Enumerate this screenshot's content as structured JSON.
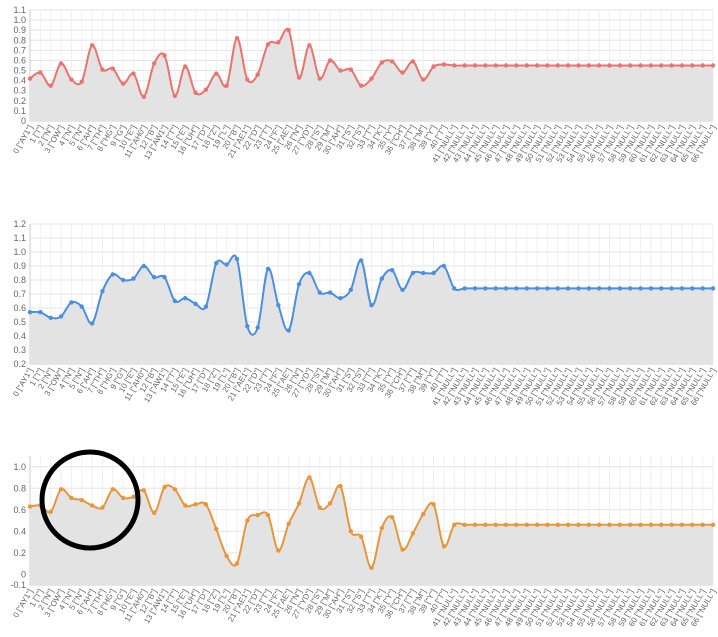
{
  "chart_data": [
    {
      "type": "area",
      "color": "#e8736f",
      "area_color": "#e3e3e3",
      "grid": true,
      "ylim": [
        0,
        1.1
      ],
      "yticks": [
        "0",
        "0.1",
        "0.2",
        "0.3",
        "0.4",
        "0.5",
        "0.6",
        "0.7",
        "0.8",
        "0.9",
        "1.0",
        "1.1"
      ],
      "ytick_values": [
        0,
        0.1,
        0.2,
        0.3,
        0.4,
        0.5,
        0.6,
        0.7,
        0.8,
        0.9,
        1.0,
        1.1
      ],
      "x": [
        "0 [\"AY1\"]",
        "1 [\"I\"]",
        "2 [\"N\"]",
        "3 [\"OW\"]",
        "4 [\"N\"]",
        "5 [\"N\"]",
        "6 [\"AH\"]",
        "7 [\"TH\"]",
        "8 [\"HG\"]",
        "9 [\"G\"]",
        "10 [\"E\"]",
        "11 [\"AH0\"]",
        "12 [\"B\"]",
        "13 [\"AW1\"]",
        "14 [\"T\"]",
        "15 [\"E\"]",
        "16 [\"UH\"]",
        "17 [\"D\"]",
        "18 [\"Z\"]",
        "19 [\"L\"]",
        "20 [\"B\"]",
        "21 [\"AE1\"]",
        "22 [\"D\"]",
        "23 [\"T\"]",
        "24 [\"F\"]",
        "25 [\"AE\"]",
        "26 [\"N\"]",
        "27 [\"YD\"]",
        "28 [\"S\"]",
        "29 [\"M\"]",
        "30 [\"AH\"]",
        "31 [\"S\"]",
        "32 [\"S\"]",
        "33 [\"T\"]",
        "34 [\"K\"]",
        "35 [\"Y\"]",
        "36 [\"CH\"]",
        "37 [\"T\"]",
        "38 [\"M\"]",
        "39 [\"Y\"]",
        "40 [\"T\"]",
        "41 [\"NULL\"]",
        "42 [\"NULL\"]",
        "43 [\"NULL\"]",
        "44 [\"NULL\"]",
        "45 [\"NULL\"]",
        "46 [\"NULL\"]",
        "47 [\"NULL\"]",
        "48 [\"NULL\"]",
        "49 [\"NULL\"]",
        "50 [\"NULL\"]",
        "51 [\"NULL\"]",
        "52 [\"NULL\"]",
        "53 [\"NULL\"]",
        "54 [\"NULL\"]",
        "55 [\"NULL\"]",
        "56 [\"NULL\"]",
        "57 [\"NULL\"]",
        "58 [\"NULL\"]",
        "59 [\"NULL\"]",
        "60 [\"NULL\"]",
        "61 [\"NULL\"]",
        "62 [\"NULL\"]",
        "63 [\"NULL\"]",
        "64 [\"NULL\"]",
        "65 [\"NULL\"]",
        "66 [\"NULL\"]"
      ],
      "values": [
        0.42,
        0.48,
        0.35,
        0.57,
        0.41,
        0.39,
        0.75,
        0.51,
        0.52,
        0.37,
        0.47,
        0.24,
        0.57,
        0.65,
        0.25,
        0.54,
        0.28,
        0.31,
        0.47,
        0.35,
        0.82,
        0.41,
        0.46,
        0.76,
        0.78,
        0.9,
        0.43,
        0.75,
        0.42,
        0.6,
        0.5,
        0.51,
        0.35,
        0.42,
        0.58,
        0.59,
        0.48,
        0.59,
        0.41,
        0.54,
        0.56,
        0.55,
        0.55,
        0.55,
        0.55,
        0.55,
        0.55,
        0.55,
        0.55,
        0.55,
        0.55,
        0.55,
        0.55,
        0.55,
        0.55,
        0.55,
        0.55,
        0.55,
        0.55,
        0.55,
        0.55,
        0.55,
        0.55,
        0.55,
        0.55,
        0.55,
        0.55
      ]
    },
    {
      "type": "area",
      "color": "#4a8fe0",
      "area_color": "#e3e3e3",
      "grid": true,
      "ylim": [
        0.2,
        1.2
      ],
      "yticks": [
        "0.2",
        "0.3",
        "0.4",
        "0.5",
        "0.6",
        "0.7",
        "0.8",
        "0.9",
        "1.0",
        "1.1",
        "1.2"
      ],
      "ytick_values": [
        0.2,
        0.3,
        0.4,
        0.5,
        0.6,
        0.7,
        0.8,
        0.9,
        1.0,
        1.1,
        1.2
      ],
      "x": [
        "0 [\"AY1\"]",
        "1 [\"I\"]",
        "2 [\"N\"]",
        "3 [\"OW\"]",
        "4 [\"N\"]",
        "5 [\"N\"]",
        "6 [\"AH\"]",
        "7 [\"TH\"]",
        "8 [\"HG\"]",
        "9 [\"G\"]",
        "10 [\"E\"]",
        "11 [\"AH0\"]",
        "12 [\"B\"]",
        "13 [\"AW1\"]",
        "14 [\"T\"]",
        "15 [\"E\"]",
        "16 [\"UH\"]",
        "17 [\"D\"]",
        "18 [\"Z\"]",
        "19 [\"L\"]",
        "20 [\"B\"]",
        "21 [\"AE1\"]",
        "22 [\"D\"]",
        "23 [\"T\"]",
        "24 [\"F\"]",
        "25 [\"AE\"]",
        "26 [\"N\"]",
        "27 [\"YD\"]",
        "28 [\"S\"]",
        "29 [\"M\"]",
        "30 [\"AH\"]",
        "31 [\"S\"]",
        "32 [\"S\"]",
        "33 [\"T\"]",
        "34 [\"K\"]",
        "35 [\"Y\"]",
        "36 [\"CH\"]",
        "37 [\"T\"]",
        "38 [\"M\"]",
        "39 [\"Y\"]",
        "40 [\"T\"]",
        "41 [\"NULL\"]",
        "42 [\"NULL\"]",
        "43 [\"NULL\"]",
        "44 [\"NULL\"]",
        "45 [\"NULL\"]",
        "46 [\"NULL\"]",
        "47 [\"NULL\"]",
        "48 [\"NULL\"]",
        "49 [\"NULL\"]",
        "50 [\"NULL\"]",
        "51 [\"NULL\"]",
        "52 [\"NULL\"]",
        "53 [\"NULL\"]",
        "54 [\"NULL\"]",
        "55 [\"NULL\"]",
        "56 [\"NULL\"]",
        "57 [\"NULL\"]",
        "58 [\"NULL\"]",
        "59 [\"NULL\"]",
        "60 [\"NULL\"]",
        "61 [\"NULL\"]",
        "62 [\"NULL\"]",
        "63 [\"NULL\"]",
        "64 [\"NULL\"]",
        "65 [\"NULL\"]",
        "66 [\"NULL\"]"
      ],
      "values": [
        0.57,
        0.57,
        0.53,
        0.54,
        0.64,
        0.61,
        0.49,
        0.72,
        0.84,
        0.8,
        0.81,
        0.9,
        0.82,
        0.82,
        0.65,
        0.67,
        0.63,
        0.61,
        0.92,
        0.91,
        0.95,
        0.47,
        0.46,
        0.88,
        0.62,
        0.44,
        0.77,
        0.85,
        0.71,
        0.71,
        0.67,
        0.73,
        0.94,
        0.62,
        0.81,
        0.87,
        0.73,
        0.85,
        0.85,
        0.85,
        0.9,
        0.74,
        0.74,
        0.74,
        0.74,
        0.74,
        0.74,
        0.74,
        0.74,
        0.74,
        0.74,
        0.74,
        0.74,
        0.74,
        0.74,
        0.74,
        0.74,
        0.74,
        0.74,
        0.74,
        0.74,
        0.74,
        0.74,
        0.74,
        0.74,
        0.74,
        0.74
      ]
    },
    {
      "type": "area",
      "color": "#e8963c",
      "area_color": "#e3e3e3",
      "grid": true,
      "ylim": [
        -0.1,
        1.1
      ],
      "yticks": [
        "-0.1",
        "0",
        "0.2",
        "0.4",
        "0.6",
        "0.8",
        "1.0"
      ],
      "ytick_values": [
        -0.1,
        0,
        0.2,
        0.4,
        0.6,
        0.8,
        1.0
      ],
      "x": [
        "0 [\"AY1\"]",
        "1 [\"I\"]",
        "2 [\"N\"]",
        "3 [\"OW\"]",
        "4 [\"N\"]",
        "5 [\"N\"]",
        "6 [\"AH\"]",
        "7 [\"TH\"]",
        "8 [\"HG\"]",
        "9 [\"G\"]",
        "10 [\"E\"]",
        "11 [\"AH0\"]",
        "12 [\"B\"]",
        "13 [\"AW1\"]",
        "14 [\"T\"]",
        "15 [\"E\"]",
        "16 [\"UH\"]",
        "17 [\"D\"]",
        "18 [\"Z\"]",
        "19 [\"L\"]",
        "20 [\"B\"]",
        "21 [\"AE1\"]",
        "22 [\"D\"]",
        "23 [\"T\"]",
        "24 [\"F\"]",
        "25 [\"AE\"]",
        "26 [\"N\"]",
        "27 [\"YD\"]",
        "28 [\"S\"]",
        "29 [\"M\"]",
        "30 [\"AH\"]",
        "31 [\"S\"]",
        "32 [\"S\"]",
        "33 [\"T\"]",
        "34 [\"K\"]",
        "35 [\"Y\"]",
        "36 [\"CH\"]",
        "37 [\"T\"]",
        "38 [\"M\"]",
        "39 [\"Y\"]",
        "40 [\"T\"]",
        "41 [\"NULL\"]",
        "42 [\"NULL\"]",
        "43 [\"NULL\"]",
        "44 [\"NULL\"]",
        "45 [\"NULL\"]",
        "46 [\"NULL\"]",
        "47 [\"NULL\"]",
        "48 [\"NULL\"]",
        "49 [\"NULL\"]",
        "50 [\"NULL\"]",
        "51 [\"NULL\"]",
        "52 [\"NULL\"]",
        "53 [\"NULL\"]",
        "54 [\"NULL\"]",
        "55 [\"NULL\"]",
        "56 [\"NULL\"]",
        "57 [\"NULL\"]",
        "58 [\"NULL\"]",
        "59 [\"NULL\"]",
        "60 [\"NULL\"]",
        "61 [\"NULL\"]",
        "62 [\"NULL\"]",
        "63 [\"NULL\"]",
        "64 [\"NULL\"]",
        "65 [\"NULL\"]",
        "66 [\"NULL\"]"
      ],
      "values": [
        0.63,
        0.64,
        0.58,
        0.79,
        0.71,
        0.69,
        0.64,
        0.62,
        0.79,
        0.71,
        0.72,
        0.78,
        0.57,
        0.81,
        0.79,
        0.64,
        0.65,
        0.65,
        0.42,
        0.17,
        0.1,
        0.5,
        0.55,
        0.55,
        0.22,
        0.47,
        0.66,
        0.9,
        0.62,
        0.66,
        0.82,
        0.4,
        0.35,
        0.06,
        0.43,
        0.53,
        0.23,
        0.38,
        0.56,
        0.65,
        0.26,
        0.46,
        0.46,
        0.46,
        0.46,
        0.46,
        0.46,
        0.46,
        0.46,
        0.46,
        0.46,
        0.46,
        0.46,
        0.46,
        0.46,
        0.46,
        0.46,
        0.46,
        0.46,
        0.46,
        0.46,
        0.46,
        0.46,
        0.46,
        0.46,
        0.46,
        0.46
      ]
    }
  ],
  "annotation": {
    "shape": "circle",
    "color": "#000000"
  }
}
